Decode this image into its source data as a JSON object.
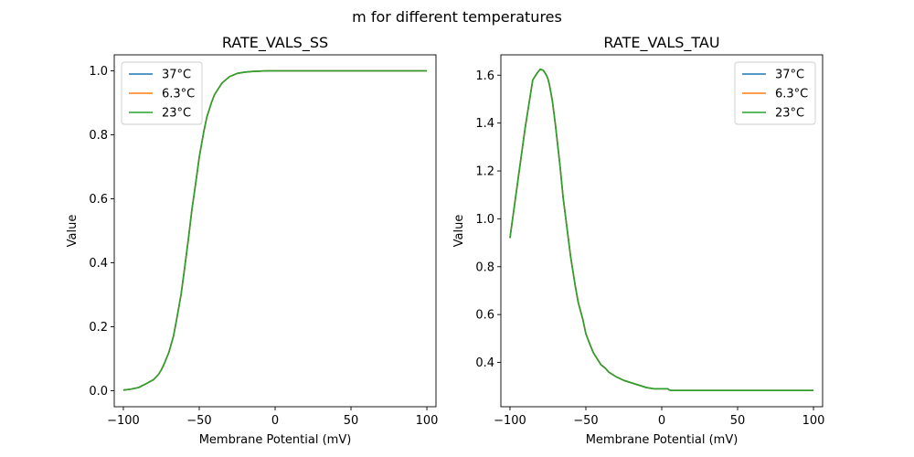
{
  "figure": {
    "suptitle": "m for different temperatures"
  },
  "chart_data": [
    {
      "type": "line",
      "title": "RATE_VALS_SS",
      "xlabel": "Membrane Potential (mV)",
      "ylabel": "Value",
      "xlim": [
        -106,
        106
      ],
      "ylim": [
        -0.05,
        1.05
      ],
      "xticks": [
        -100,
        -50,
        0,
        50,
        100
      ],
      "xtick_labels": [
        "−100",
        "−50",
        "0",
        "50",
        "100"
      ],
      "yticks": [
        0.0,
        0.2,
        0.4,
        0.6,
        0.8,
        1.0
      ],
      "ytick_labels": [
        "0.0",
        "0.2",
        "0.4",
        "0.6",
        "0.8",
        "1.0"
      ],
      "legend_position": "upper-left",
      "x": [
        -100,
        -95,
        -90,
        -85,
        -80,
        -77,
        -75,
        -73,
        -70,
        -67,
        -65,
        -62,
        -60,
        -57,
        -55,
        -52,
        -50,
        -47,
        -45,
        -42,
        -40,
        -35,
        -30,
        -25,
        -20,
        -15,
        -10,
        -5,
        0,
        10,
        20,
        40,
        60,
        80,
        100
      ],
      "series": [
        {
          "name": "37°C",
          "color": "#1f77b4",
          "values": [
            0.002,
            0.005,
            0.01,
            0.022,
            0.035,
            0.05,
            0.065,
            0.085,
            0.12,
            0.17,
            0.22,
            0.3,
            0.37,
            0.48,
            0.56,
            0.66,
            0.73,
            0.81,
            0.855,
            0.9,
            0.925,
            0.962,
            0.982,
            0.992,
            0.996,
            0.998,
            0.999,
            1.0,
            1.0,
            1.0,
            1.0,
            1.0,
            1.0,
            1.0,
            1.0
          ]
        },
        {
          "name": "6.3°C",
          "color": "#ff7f0e",
          "values": [
            0.002,
            0.005,
            0.01,
            0.022,
            0.035,
            0.05,
            0.065,
            0.085,
            0.12,
            0.17,
            0.22,
            0.3,
            0.37,
            0.48,
            0.56,
            0.66,
            0.73,
            0.81,
            0.855,
            0.9,
            0.925,
            0.962,
            0.982,
            0.992,
            0.996,
            0.998,
            0.999,
            1.0,
            1.0,
            1.0,
            1.0,
            1.0,
            1.0,
            1.0,
            1.0
          ]
        },
        {
          "name": "23°C",
          "color": "#2ca02c",
          "values": [
            0.002,
            0.005,
            0.01,
            0.022,
            0.035,
            0.05,
            0.065,
            0.085,
            0.12,
            0.17,
            0.22,
            0.3,
            0.37,
            0.48,
            0.56,
            0.66,
            0.73,
            0.81,
            0.855,
            0.9,
            0.925,
            0.962,
            0.982,
            0.992,
            0.996,
            0.998,
            0.999,
            1.0,
            1.0,
            1.0,
            1.0,
            1.0,
            1.0,
            1.0,
            1.0
          ]
        }
      ]
    },
    {
      "type": "line",
      "title": "RATE_VALS_TAU",
      "xlabel": "Membrane Potential (mV)",
      "ylabel": "Value",
      "xlim": [
        -106,
        106
      ],
      "ylim": [
        0.215,
        1.685
      ],
      "xticks": [
        -100,
        -50,
        0,
        50,
        100
      ],
      "xtick_labels": [
        "−100",
        "−50",
        "0",
        "50",
        "100"
      ],
      "yticks": [
        0.4,
        0.6,
        0.8,
        1.0,
        1.2,
        1.4,
        1.6
      ],
      "ytick_labels": [
        "0.4",
        "0.6",
        "0.8",
        "1.0",
        "1.2",
        "1.4",
        "1.6"
      ],
      "legend_position": "upper-right",
      "x": [
        -100,
        -95,
        -90,
        -85,
        -82,
        -80,
        -78,
        -76,
        -75,
        -74,
        -72,
        -70,
        -67,
        -65,
        -62,
        -60,
        -57,
        -55,
        -52,
        -50,
        -47,
        -45,
        -42,
        -40,
        -37,
        -35,
        -30,
        -25,
        -20,
        -15,
        -10,
        -5,
        0,
        4,
        5,
        6,
        10,
        20,
        40,
        60,
        80,
        100
      ],
      "series": [
        {
          "name": "37°C",
          "color": "#1f77b4",
          "values": [
            0.92,
            1.15,
            1.38,
            1.58,
            1.61,
            1.625,
            1.62,
            1.6,
            1.585,
            1.56,
            1.49,
            1.39,
            1.22,
            1.09,
            0.94,
            0.84,
            0.72,
            0.65,
            0.58,
            0.52,
            0.47,
            0.44,
            0.41,
            0.39,
            0.375,
            0.36,
            0.34,
            0.325,
            0.315,
            0.305,
            0.295,
            0.29,
            0.29,
            0.29,
            0.285,
            0.283,
            0.283,
            0.283,
            0.283,
            0.283,
            0.283,
            0.283
          ]
        },
        {
          "name": "6.3°C",
          "color": "#ff7f0e",
          "values": [
            0.92,
            1.15,
            1.38,
            1.58,
            1.61,
            1.625,
            1.62,
            1.6,
            1.585,
            1.56,
            1.49,
            1.39,
            1.22,
            1.09,
            0.94,
            0.84,
            0.72,
            0.65,
            0.58,
            0.52,
            0.47,
            0.44,
            0.41,
            0.39,
            0.375,
            0.36,
            0.34,
            0.325,
            0.315,
            0.305,
            0.295,
            0.29,
            0.29,
            0.29,
            0.285,
            0.283,
            0.283,
            0.283,
            0.283,
            0.283,
            0.283,
            0.283
          ]
        },
        {
          "name": "23°C",
          "color": "#2ca02c",
          "values": [
            0.92,
            1.15,
            1.38,
            1.58,
            1.61,
            1.625,
            1.62,
            1.6,
            1.585,
            1.56,
            1.49,
            1.39,
            1.22,
            1.09,
            0.94,
            0.84,
            0.72,
            0.65,
            0.58,
            0.52,
            0.47,
            0.44,
            0.41,
            0.39,
            0.375,
            0.36,
            0.34,
            0.325,
            0.315,
            0.305,
            0.295,
            0.29,
            0.29,
            0.29,
            0.285,
            0.283,
            0.283,
            0.283,
            0.283,
            0.283,
            0.283,
            0.283
          ]
        }
      ]
    }
  ]
}
